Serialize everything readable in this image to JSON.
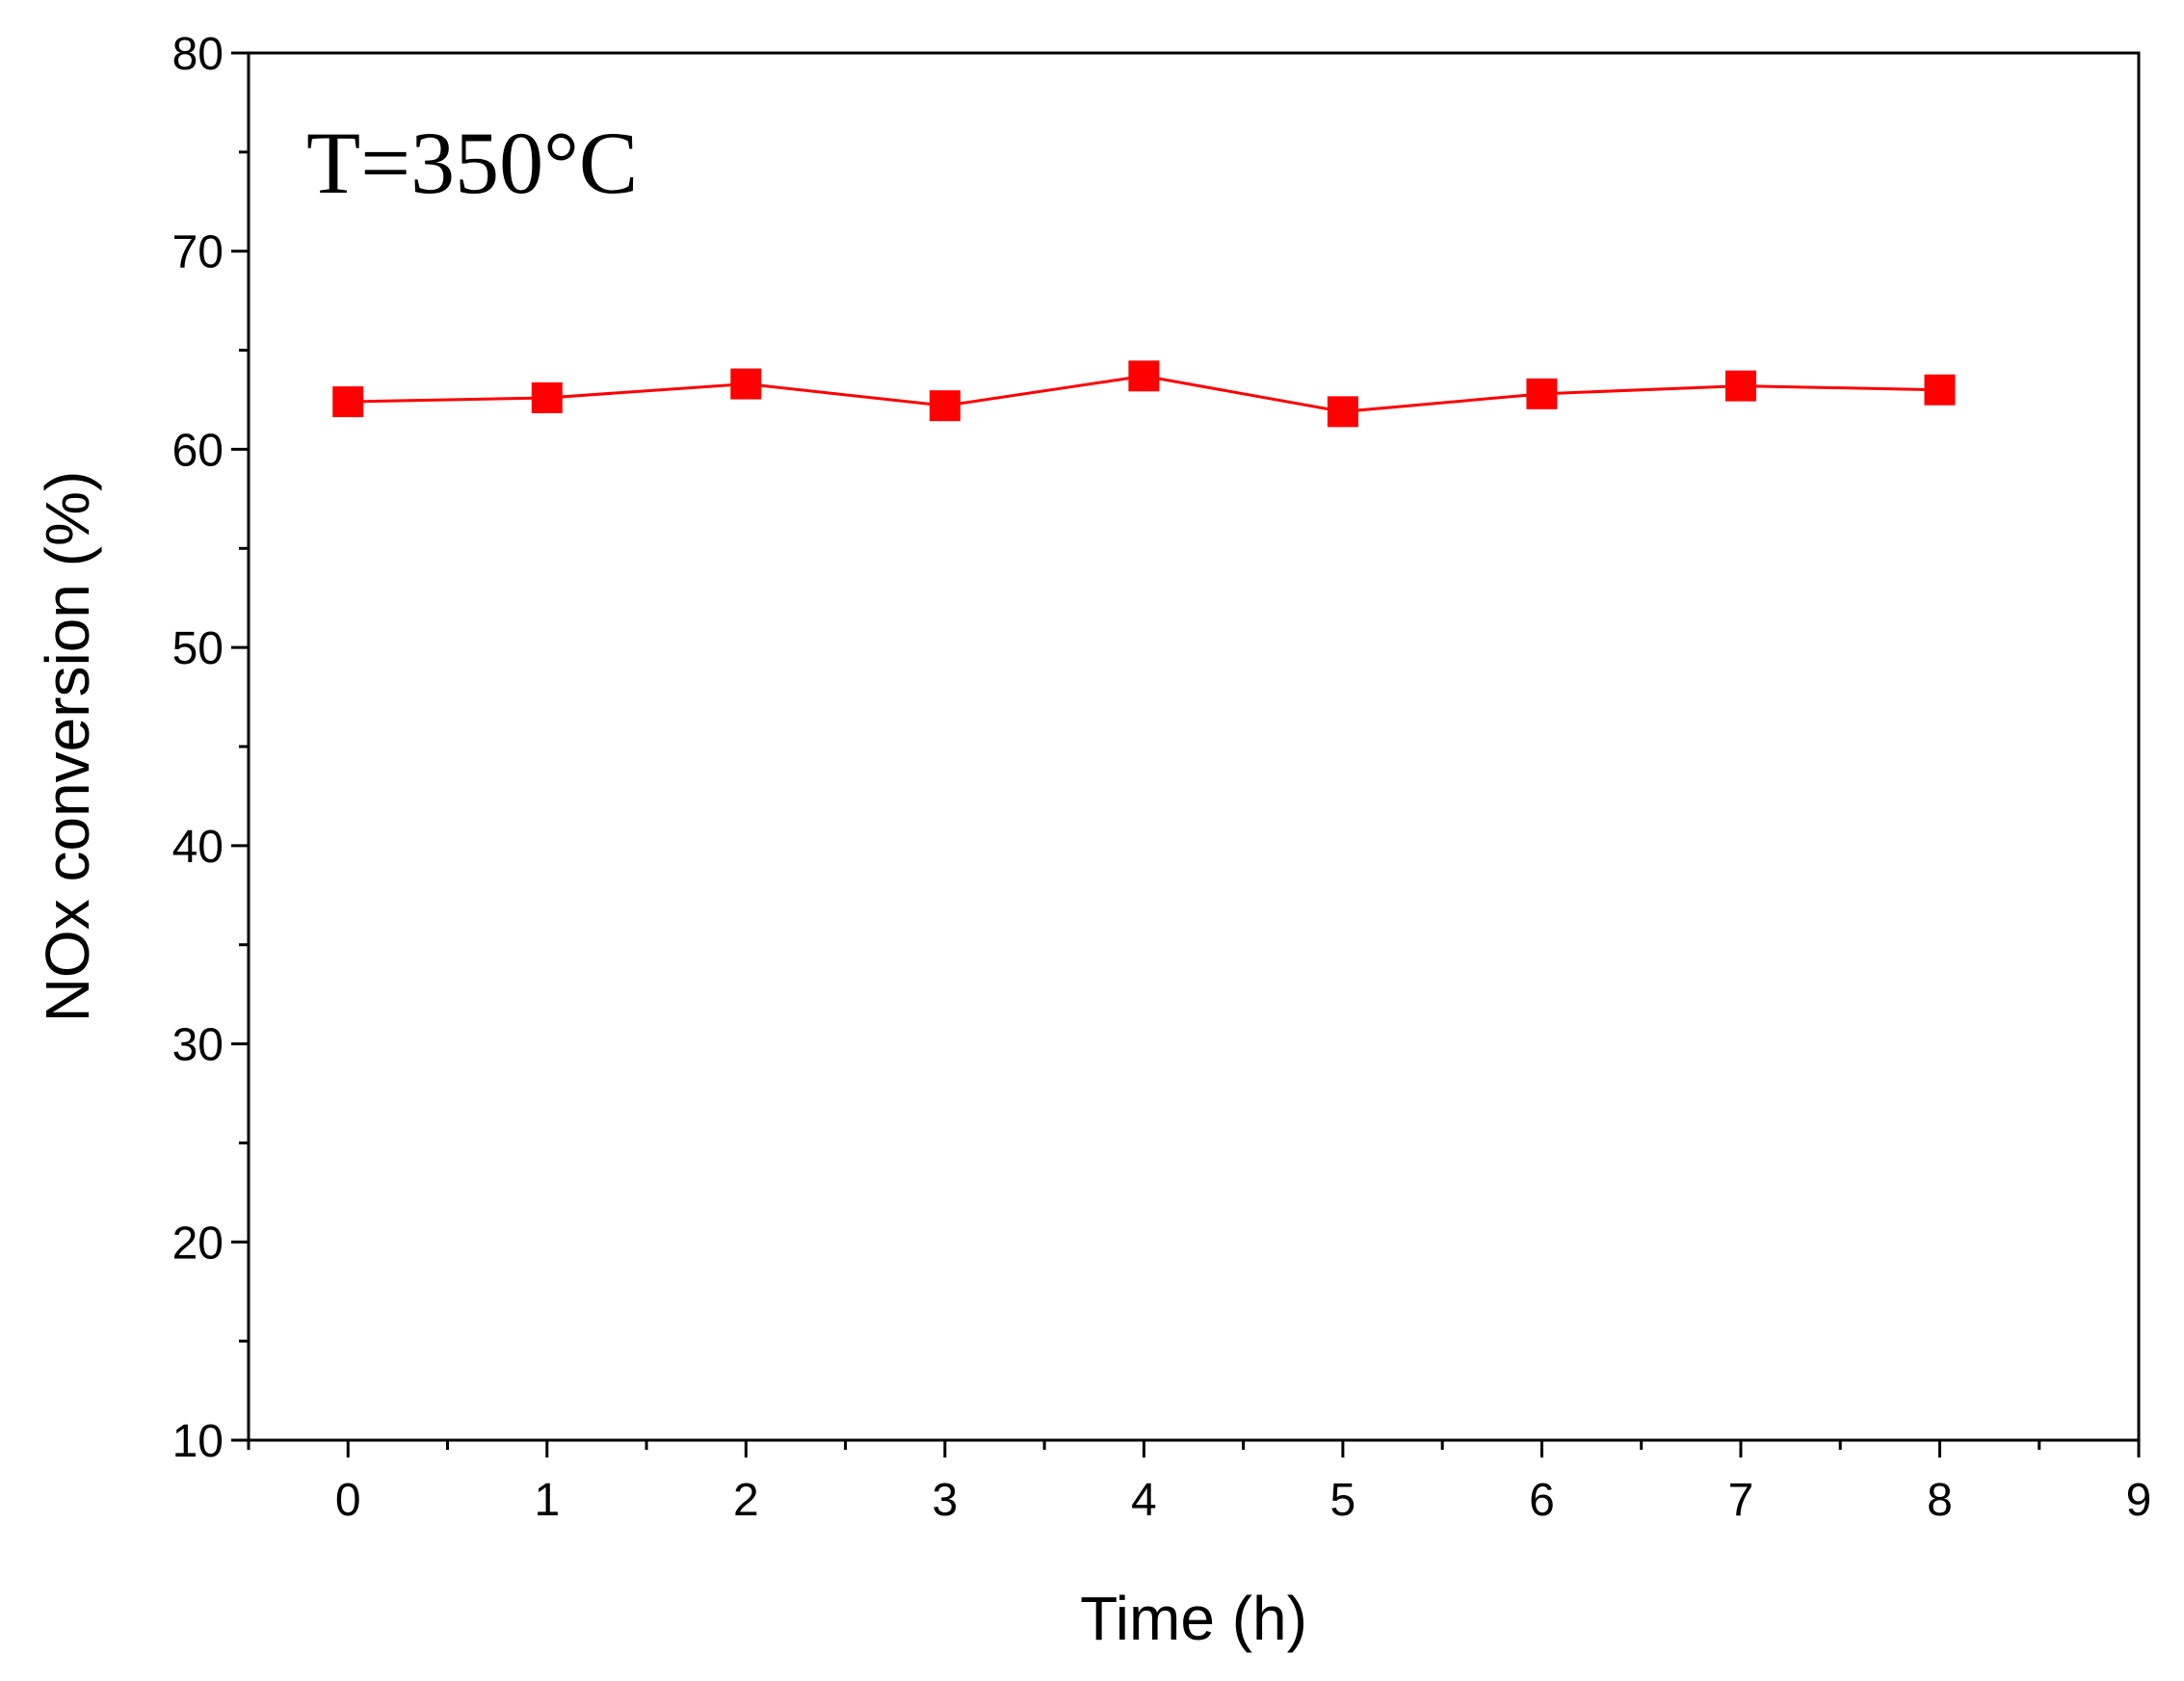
{
  "chart_data": {
    "type": "line",
    "title": "",
    "xlabel": "Time (h)",
    "ylabel": "NOx conversion (%)",
    "xlim": [
      -0.5,
      9
    ],
    "ylim": [
      10,
      80
    ],
    "x_ticks": [
      0,
      1,
      2,
      3,
      4,
      5,
      6,
      7,
      8,
      9
    ],
    "y_ticks": [
      10,
      20,
      30,
      40,
      50,
      60,
      70,
      80
    ],
    "annotation": "T=350°C",
    "grid": false,
    "series": [
      {
        "color": "#ff0000",
        "marker": "square",
        "x": [
          0,
          1,
          2,
          3,
          4,
          5,
          6,
          7,
          8
        ],
        "y": [
          62.4,
          62.6,
          63.3,
          62.2,
          63.7,
          61.9,
          62.8,
          63.2,
          63.0
        ]
      }
    ]
  }
}
